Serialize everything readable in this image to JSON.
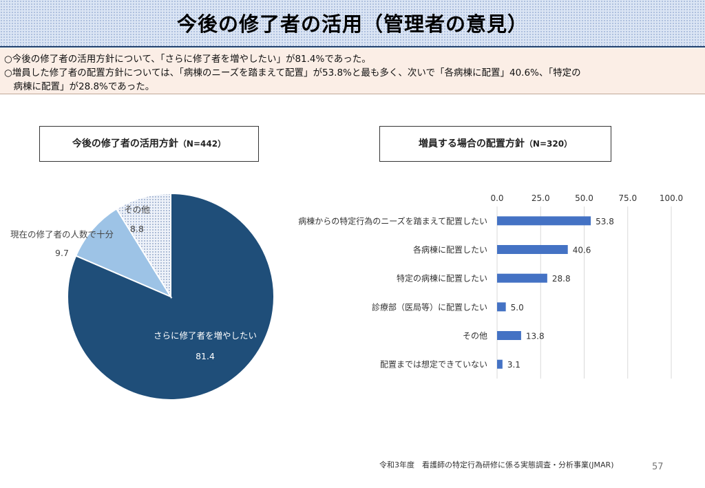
{
  "slide": {
    "title": "今後の修了者の活用（管理者の意見）",
    "summary": [
      "○今後の修了者の活用方針について、「さらに修了者を増やしたい」が81.4%であった。",
      "○増員した修了者の配置方針については、「病棟のニーズを踏まえて配置」が53.8%と最も多く、次いで「各病棟に配置」40.6%、「特定の",
      "　病棟に配置」が28.8%であった。"
    ],
    "footer_source": "令和3年度　看護師の特定行為研修に係る実態調査・分析事業(JMAR)",
    "page_number": "57"
  },
  "pie_panel": {
    "title": "今後の修了者の活用方針",
    "n_label": "（N=442）"
  },
  "bar_panel": {
    "title": "増員する場合の配置方針",
    "n_label": "（N=320）"
  },
  "chart_data": [
    {
      "type": "pie",
      "categories": [
        "さらに修了者を増やしたい",
        "現在の修了者の人数で十分",
        "その他"
      ],
      "values": [
        81.4,
        9.7,
        8.8
      ],
      "value_labels": [
        "81.4",
        "9.7",
        "8.8"
      ],
      "colors": [
        "#1f4e79",
        "#9dc3e6",
        "#dae3f3"
      ],
      "patterns": [
        "solid",
        "solid",
        "dotted"
      ]
    },
    {
      "type": "bar",
      "orientation": "horizontal",
      "categories": [
        "病棟からの特定行為のニーズを踏まえて配置したい",
        "各病棟に配置したい",
        "特定の病棟に配置したい",
        "診療部（医局等）に配置したい",
        "その他",
        "配置までは想定できていない"
      ],
      "values": [
        53.8,
        40.6,
        28.8,
        5.0,
        13.8,
        3.1
      ],
      "value_labels": [
        "53.8",
        "40.6",
        "28.8",
        "5.0",
        "13.8",
        "3.1"
      ],
      "xlim": [
        0,
        100
      ],
      "xticks": [
        0,
        25,
        50,
        75,
        100
      ],
      "xtick_labels": [
        "0.0",
        "25.0",
        "50.0",
        "75.0",
        "100.0"
      ],
      "bar_color": "#4472c4",
      "grid": true
    }
  ]
}
